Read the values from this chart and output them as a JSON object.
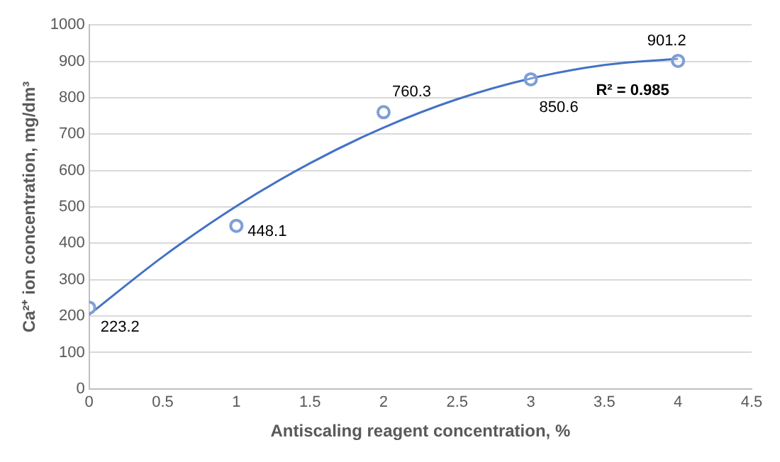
{
  "chart_data": {
    "type": "scatter",
    "xlabel": "Antiscaling reagent concentration, %",
    "ylabel": "Ca²⁺ ion concentration, mg/dm³",
    "xlim": [
      0,
      4.5
    ],
    "xticks": [
      0,
      0.5,
      1,
      1.5,
      2,
      2.5,
      3,
      3.5,
      4,
      4.5
    ],
    "ylim": [
      0,
      1000
    ],
    "yticks": [
      0,
      100,
      200,
      300,
      400,
      500,
      600,
      700,
      800,
      900,
      1000
    ],
    "grid": "y",
    "legend": false,
    "annotations": [
      "R² = 0.985"
    ],
    "series": [
      {
        "type": "line",
        "color": "#4472c4",
        "marker": "none",
        "x": [
          0,
          0.5,
          1,
          1.5,
          2,
          2.5,
          3,
          3.5,
          4
        ],
        "values": [
          204,
          363,
          502,
          620,
          718,
          796,
          853,
          890,
          907
        ]
      },
      {
        "type": "scatter",
        "color": "#7f9ed6",
        "marker": "circle",
        "x": [
          0,
          1,
          2,
          3,
          4
        ],
        "values": [
          223.2,
          448.1,
          760.3,
          850.6,
          901.2
        ],
        "value_labels": [
          "223.2",
          "448.1",
          "760.3",
          "850.6",
          "901.2"
        ]
      }
    ]
  }
}
